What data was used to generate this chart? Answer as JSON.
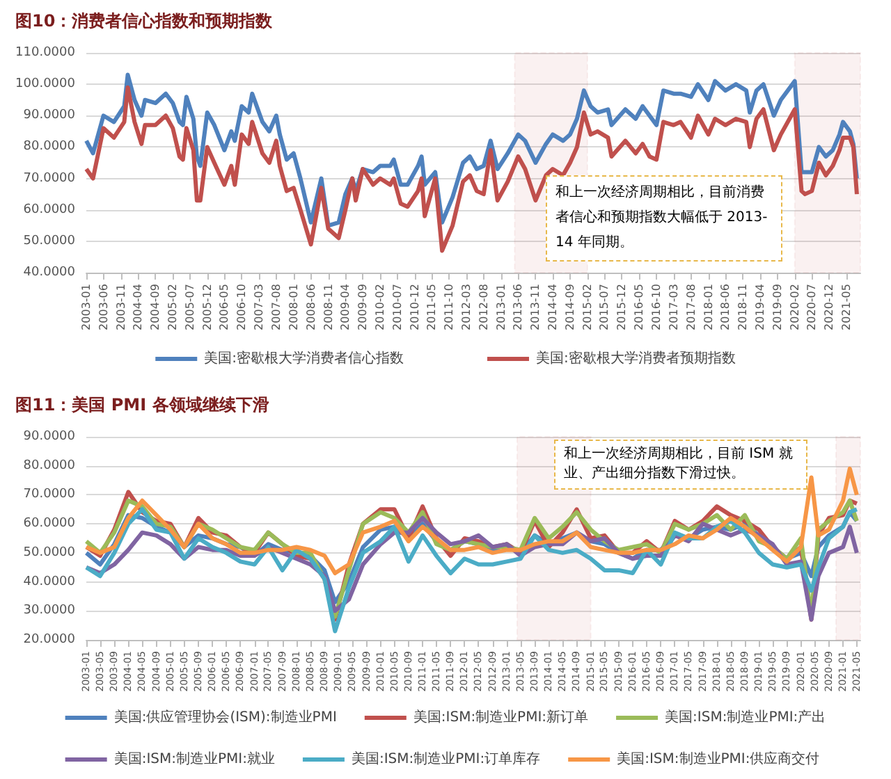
{
  "chart_data": [
    {
      "type": "line",
      "title": "图10：消费者信心指数和预期指数",
      "legend": "bottom",
      "grid": "y",
      "marker": "none",
      "xlim": [
        "2003-01",
        "2021-09"
      ],
      "xticks": [
        "2003-01",
        "2003-06",
        "2003-11",
        "2004-04",
        "2004-09",
        "2005-02",
        "2005-07",
        "2005-12",
        "2006-05",
        "2006-10",
        "2007-03",
        "2007-08",
        "2008-01",
        "2008-06",
        "2008-11",
        "2009-04",
        "2009-09",
        "2010-02",
        "2010-07",
        "2010-12",
        "2011-05",
        "2011-10",
        "2012-03",
        "2012-08",
        "2013-01",
        "2013-06",
        "2013-11",
        "2014-04",
        "2014-09",
        "2015-02",
        "2015-07",
        "2015-12",
        "2016-05",
        "2016-10",
        "2017-03",
        "2017-08",
        "2018-01",
        "2018-06",
        "2018-11",
        "2019-04",
        "2019-09",
        "2020-02",
        "2020-07",
        "2020-12",
        "2021-05"
      ],
      "ylim": [
        40,
        110
      ],
      "yticks": [
        {
          "value": 40,
          "label": "40.0000"
        },
        {
          "value": 50,
          "label": "50.0000"
        },
        {
          "value": 60,
          "label": "60.0000"
        },
        {
          "value": 70,
          "label": "70.0000"
        },
        {
          "value": 80,
          "label": "80.0000"
        },
        {
          "value": 90,
          "label": "90.0000"
        },
        {
          "value": 100,
          "label": "100.0000"
        },
        {
          "value": 110,
          "label": "110.0000"
        }
      ],
      "x": [
        "2003-01",
        "2003-03",
        "2003-06",
        "2003-09",
        "2003-12",
        "2004-01",
        "2004-03",
        "2004-05",
        "2004-06",
        "2004-09",
        "2004-12",
        "2005-02",
        "2005-04",
        "2005-05",
        "2005-06",
        "2005-08",
        "2005-09",
        "2005-10",
        "2005-12",
        "2006-02",
        "2006-05",
        "2006-07",
        "2006-08",
        "2006-10",
        "2006-12",
        "2007-01",
        "2007-04",
        "2007-06",
        "2007-08",
        "2007-09",
        "2007-11",
        "2008-01",
        "2008-03",
        "2008-06",
        "2008-09",
        "2008-11",
        "2009-02",
        "2009-04",
        "2009-06",
        "2009-07",
        "2009-09",
        "2009-12",
        "2010-02",
        "2010-05",
        "2010-06",
        "2010-08",
        "2010-10",
        "2011-01",
        "2011-02",
        "2011-03",
        "2011-06",
        "2011-08",
        "2011-11",
        "2012-02",
        "2012-04",
        "2012-06",
        "2012-08",
        "2012-10",
        "2012-12",
        "2013-03",
        "2013-06",
        "2013-08",
        "2013-11",
        "2014-02",
        "2014-04",
        "2014-07",
        "2014-09",
        "2014-11",
        "2015-01",
        "2015-03",
        "2015-05",
        "2015-08",
        "2015-09",
        "2016-01",
        "2016-04",
        "2016-06",
        "2016-08",
        "2016-10",
        "2016-12",
        "2017-03",
        "2017-05",
        "2017-08",
        "2017-10",
        "2018-01",
        "2018-03",
        "2018-06",
        "2018-09",
        "2018-12",
        "2019-01",
        "2019-03",
        "2019-05",
        "2019-08",
        "2019-10",
        "2020-02",
        "2020-04",
        "2020-05",
        "2020-07",
        "2020-09",
        "2020-11",
        "2021-01",
        "2021-03",
        "2021-04",
        "2021-06",
        "2021-07",
        "2021-08"
      ],
      "series": [
        {
          "name": "美国:密歇根大学消费者信心指数",
          "color": "#4f81bd",
          "values": [
            82,
            78,
            90,
            88,
            93,
            103,
            95,
            90,
            95,
            94,
            97,
            94,
            88,
            87,
            96,
            89,
            77,
            74,
            91,
            87,
            79,
            85,
            82,
            93,
            91,
            97,
            88,
            85,
            90,
            84,
            76,
            78,
            70,
            56,
            70,
            55,
            56,
            65,
            70,
            66,
            73,
            72,
            74,
            74,
            76,
            68,
            68,
            74,
            77,
            68,
            72,
            56,
            64,
            75,
            77,
            73,
            74,
            82,
            73,
            78,
            84,
            82,
            75,
            81,
            84,
            82,
            84,
            89,
            98,
            93,
            91,
            92,
            87,
            92,
            89,
            93,
            90,
            87,
            98,
            97,
            97,
            96,
            100,
            95,
            101,
            98,
            100,
            98,
            91,
            98,
            100,
            90,
            95,
            101,
            72,
            72,
            72,
            80,
            77,
            79,
            84,
            88,
            85,
            81,
            70
          ]
        },
        {
          "name": "美国:密歇根大学消费者预期指数",
          "color": "#c0504d",
          "values": [
            73,
            70,
            86,
            83,
            88,
            99,
            88,
            81,
            87,
            87,
            90,
            86,
            77,
            76,
            86,
            79,
            63,
            63,
            80,
            75,
            68,
            74,
            68,
            84,
            81,
            88,
            78,
            75,
            82,
            74,
            66,
            67,
            60,
            49,
            67,
            54,
            51,
            60,
            70,
            63,
            73,
            68,
            70,
            68,
            70,
            62,
            61,
            66,
            70,
            58,
            70,
            47,
            55,
            69,
            71,
            66,
            65,
            79,
            63,
            69,
            77,
            73,
            63,
            71,
            73,
            71,
            75,
            80,
            91,
            84,
            85,
            83,
            77,
            82,
            78,
            81,
            77,
            76,
            88,
            87,
            88,
            83,
            90,
            84,
            89,
            87,
            89,
            88,
            80,
            89,
            92,
            79,
            84,
            92,
            66,
            65,
            66,
            75,
            71,
            74,
            79,
            83,
            83,
            80,
            65
          ]
        }
      ],
      "bands": [
        {
          "axis": "x",
          "from": "2013-05",
          "to": "2015-02",
          "color": "#c0504d"
        },
        {
          "axis": "x",
          "from": "2020-02",
          "to": "2021-09",
          "color": "#c0504d"
        }
      ],
      "annotations": [
        "和上一次经济周期相比，目前消费者信心和预期指数大幅低于 2013-14 年同期。"
      ]
    },
    {
      "type": "line",
      "title": "图11：美国 PMI 各领域继续下滑",
      "legend": "bottom",
      "grid": "y",
      "marker": "none",
      "xlim": [
        "2003-01",
        "2021-06"
      ],
      "xticks": [
        "2003-01",
        "2003-05",
        "2003-09",
        "2004-01",
        "2004-05",
        "2004-09",
        "2005-01",
        "2005-05",
        "2005-09",
        "2006-01",
        "2006-05",
        "2006-09",
        "2007-01",
        "2007-05",
        "2007-09",
        "2008-01",
        "2008-05",
        "2008-09",
        "2009-01",
        "2009-05",
        "2009-09",
        "2010-01",
        "2010-05",
        "2010-09",
        "2011-01",
        "2011-05",
        "2011-09",
        "2012-01",
        "2012-05",
        "2012-09",
        "2013-01",
        "2013-05",
        "2013-09",
        "2014-01",
        "2014-05",
        "2014-09",
        "2015-01",
        "2015-05",
        "2015-09",
        "2016-01",
        "2016-05",
        "2016-09",
        "2017-01",
        "2017-05",
        "2017-09",
        "2018-01",
        "2018-05",
        "2018-09",
        "2019-01",
        "2019-05",
        "2019-09",
        "2020-01",
        "2020-05",
        "2020-09",
        "2021-01",
        "2021-05"
      ],
      "ylim": [
        20,
        90
      ],
      "yticks": [
        {
          "value": 20,
          "label": "20.0000"
        },
        {
          "value": 30,
          "label": "30.0000"
        },
        {
          "value": 40,
          "label": "40.0000"
        },
        {
          "value": 50,
          "label": "50.0000"
        },
        {
          "value": 60,
          "label": "60.0000"
        },
        {
          "value": 70,
          "label": "70.0000"
        },
        {
          "value": 80,
          "label": "80.0000"
        },
        {
          "value": 90,
          "label": "90.0000"
        }
      ],
      "x": [
        "2003-01",
        "2003-05",
        "2003-09",
        "2004-01",
        "2004-05",
        "2004-09",
        "2005-01",
        "2005-05",
        "2005-09",
        "2006-01",
        "2006-05",
        "2006-09",
        "2007-01",
        "2007-05",
        "2007-09",
        "2008-01",
        "2008-05",
        "2008-09",
        "2008-12",
        "2009-04",
        "2009-08",
        "2010-01",
        "2010-05",
        "2010-09",
        "2011-01",
        "2011-05",
        "2011-09",
        "2012-01",
        "2012-05",
        "2012-09",
        "2013-01",
        "2013-05",
        "2013-09",
        "2014-01",
        "2014-05",
        "2014-09",
        "2015-01",
        "2015-05",
        "2015-09",
        "2016-01",
        "2016-05",
        "2016-09",
        "2017-01",
        "2017-05",
        "2017-09",
        "2018-01",
        "2018-05",
        "2018-09",
        "2019-01",
        "2019-05",
        "2019-09",
        "2020-01",
        "2020-04",
        "2020-06",
        "2020-09",
        "2021-01",
        "2021-03",
        "2021-05"
      ],
      "series": [
        {
          "name": "美国:供应管理协会(ISM):制造业PMI",
          "color": "#4f81bd",
          "values": [
            50,
            46,
            53,
            63,
            62,
            59,
            57,
            52,
            56,
            55,
            53,
            52,
            49,
            53,
            51,
            50,
            49,
            44,
            33,
            40,
            52,
            58,
            59,
            55,
            60,
            54,
            51,
            54,
            53,
            51,
            53,
            50,
            56,
            53,
            55,
            57,
            54,
            53,
            50,
            48,
            51,
            51,
            56,
            55,
            58,
            59,
            58,
            60,
            56,
            52,
            48,
            50,
            42,
            52,
            56,
            59,
            64,
            61
          ]
        },
        {
          "name": "美国:ISM:制造业PMI:新订单",
          "color": "#c0504d",
          "values": [
            52,
            49,
            58,
            71,
            64,
            61,
            60,
            52,
            62,
            57,
            56,
            52,
            50,
            57,
            53,
            49,
            48,
            41,
            27,
            46,
            60,
            65,
            65,
            55,
            66,
            55,
            49,
            55,
            54,
            52,
            53,
            50,
            61,
            52,
            57,
            65,
            55,
            56,
            50,
            50,
            54,
            50,
            61,
            58,
            61,
            66,
            63,
            61,
            58,
            52,
            48,
            52,
            27,
            56,
            62,
            63,
            68,
            67
          ]
        },
        {
          "name": "美国:ISM:制造业PMI:产出",
          "color": "#9bbb59",
          "values": [
            54,
            50,
            57,
            68,
            66,
            60,
            59,
            52,
            60,
            58,
            55,
            52,
            51,
            57,
            53,
            50,
            50,
            41,
            28,
            44,
            60,
            64,
            62,
            57,
            64,
            53,
            51,
            54,
            53,
            52,
            52,
            51,
            62,
            55,
            59,
            64,
            58,
            54,
            51,
            52,
            53,
            50,
            60,
            58,
            60,
            63,
            58,
            63,
            54,
            52,
            48,
            55,
            28,
            58,
            61,
            64,
            68,
            61
          ]
        },
        {
          "name": "美国:ISM:制造业PMI:就业",
          "color": "#8064a2",
          "values": [
            45,
            43,
            46,
            51,
            57,
            56,
            53,
            48,
            52,
            51,
            51,
            49,
            49,
            52,
            50,
            48,
            46,
            42,
            30,
            34,
            46,
            53,
            57,
            57,
            62,
            57,
            53,
            54,
            56,
            52,
            53,
            49,
            52,
            53,
            53,
            57,
            54,
            55,
            50,
            48,
            49,
            49,
            56,
            54,
            60,
            58,
            56,
            58,
            56,
            53,
            46,
            47,
            27,
            42,
            50,
            52,
            59,
            50
          ]
        },
        {
          "name": "美国:ISM:制造业PMI:订单库存",
          "color": "#4bacc6",
          "values": [
            45,
            42,
            50,
            60,
            65,
            58,
            57,
            48,
            55,
            52,
            50,
            47,
            46,
            52,
            44,
            51,
            48,
            41,
            23,
            38,
            50,
            54,
            59,
            47,
            56,
            49,
            43,
            48,
            46,
            46,
            47,
            48,
            56,
            51,
            50,
            51,
            48,
            44,
            44,
            43,
            51,
            46,
            57,
            55,
            55,
            59,
            61,
            57,
            50,
            46,
            45,
            46,
            37,
            45,
            55,
            59,
            64,
            65
          ]
        },
        {
          "name": "美国:ISM:制造业PMI:供应商交付",
          "color": "#f79646",
          "values": [
            52,
            50,
            52,
            62,
            68,
            63,
            58,
            52,
            60,
            55,
            53,
            50,
            50,
            51,
            51,
            52,
            51,
            49,
            43,
            46,
            57,
            59,
            61,
            54,
            59,
            55,
            51,
            51,
            52,
            50,
            51,
            51,
            53,
            54,
            54,
            57,
            52,
            51,
            50,
            50,
            51,
            51,
            53,
            56,
            55,
            58,
            62,
            59,
            55,
            51,
            47,
            52,
            76,
            56,
            58,
            68,
            79,
            70
          ]
        }
      ],
      "bands": [
        {
          "axis": "x",
          "from": "2013-04",
          "to": "2015-01",
          "color": "#c0504d"
        },
        {
          "axis": "x",
          "from": "2020-11",
          "to": "2021-06",
          "color": "#c0504d"
        }
      ],
      "annotations": [
        "和上一次经济周期相比，目前 ISM 就业、产出细分指数下滑过快。"
      ]
    }
  ]
}
